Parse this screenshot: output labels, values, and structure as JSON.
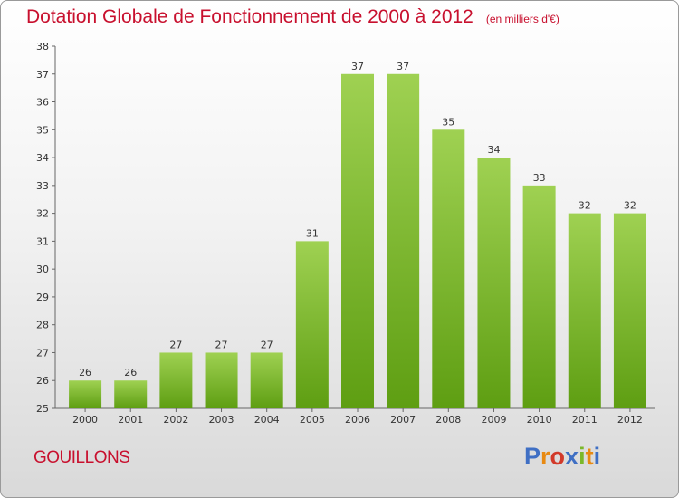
{
  "header": {
    "title": "Dotation Globale de Fonctionnement de 2000 à 2012",
    "unit": "(en milliers d'€)"
  },
  "footer": {
    "commune": "GOUILLONS",
    "logo_text": "Proxiti"
  },
  "colors": {
    "title": "#c8102e",
    "bar_top": "#9fd152",
    "bar_bottom": "#5e9e12",
    "logo_letters": [
      "#3f6fc4",
      "#e88a12",
      "#d23a2a",
      "#3f6fc4",
      "#7bb82a",
      "#e88a12",
      "#3f6fc4"
    ]
  },
  "chart_data": {
    "type": "bar",
    "title": "Dotation Globale de Fonctionnement de 2000 à 2012",
    "subtitle": "(en milliers d'€)",
    "xlabel": "",
    "ylabel": "",
    "categories": [
      "2000",
      "2001",
      "2002",
      "2003",
      "2004",
      "2005",
      "2006",
      "2007",
      "2008",
      "2009",
      "2010",
      "2011",
      "2012"
    ],
    "values": [
      26,
      26,
      27,
      27,
      27,
      31,
      37,
      37,
      35,
      34,
      33,
      32,
      32
    ],
    "ylim": [
      25,
      38
    ],
    "yticks": [
      25,
      26,
      27,
      28,
      29,
      30,
      31,
      32,
      33,
      34,
      35,
      36,
      37,
      38
    ],
    "grid": false,
    "legend": "none"
  }
}
